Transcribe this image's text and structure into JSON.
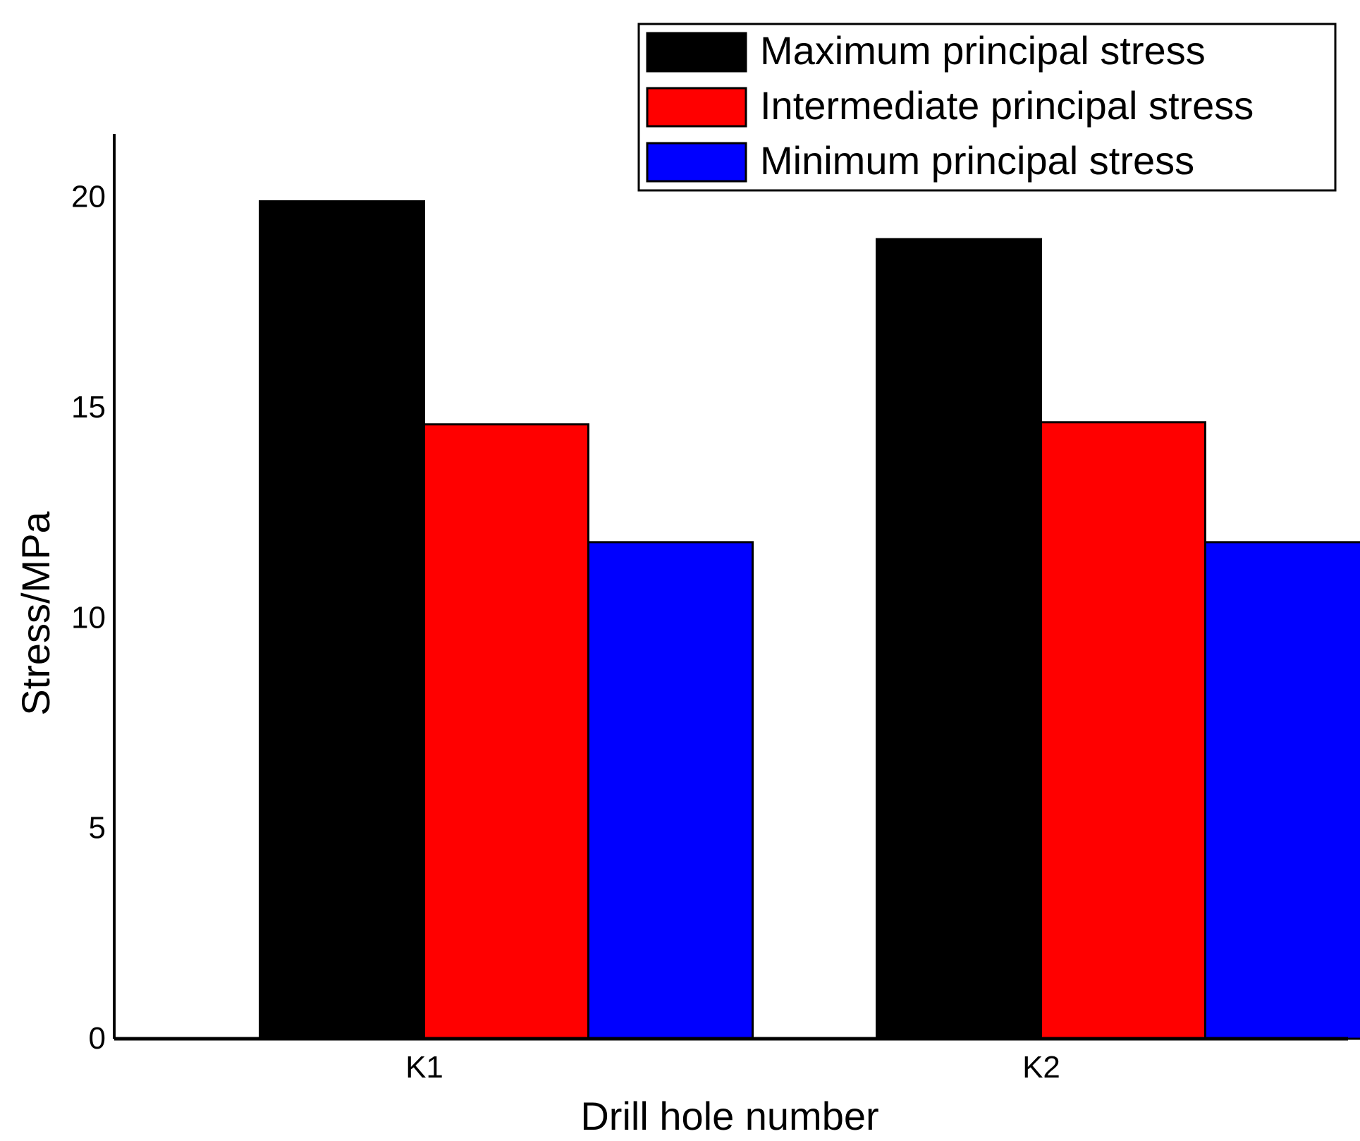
{
  "chart_data": {
    "type": "bar",
    "title": "",
    "xlabel": "Drill hole number",
    "ylabel": "Stress/MPa",
    "categories": [
      "K1",
      "K2"
    ],
    "ylim": [
      0,
      21.5
    ],
    "yticks": [
      0,
      5,
      10,
      15,
      20
    ],
    "grid": false,
    "legend_position": "top-right",
    "series": [
      {
        "name": "Maximum principal stress",
        "color": "#000000",
        "values": [
          19.9,
          19.0
        ]
      },
      {
        "name": "Intermediate principal stress",
        "color": "#ff0000",
        "values": [
          14.6,
          14.65
        ]
      },
      {
        "name": "Minimum principal stress",
        "color": "#0000ff",
        "values": [
          11.8,
          11.8
        ]
      }
    ]
  }
}
